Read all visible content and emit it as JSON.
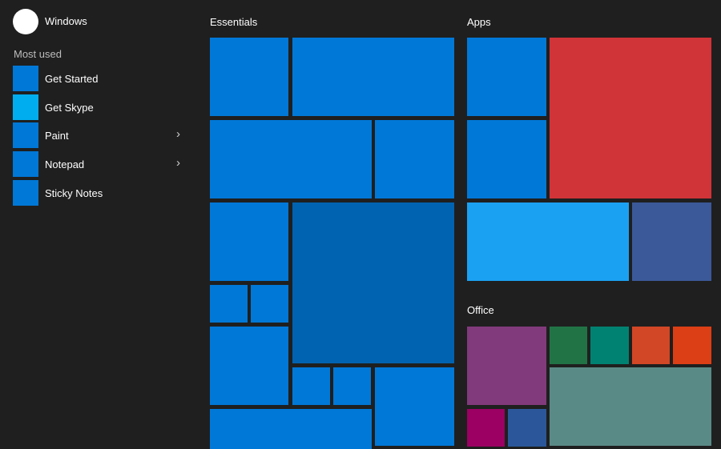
{
  "user": {
    "name": "Windows"
  },
  "most_used": {
    "label": "Most used",
    "items": [
      {
        "label": "Get Started",
        "color": "#0078d7",
        "has_submenu": false
      },
      {
        "label": "Get Skype",
        "color": "#00adef",
        "has_submenu": false
      },
      {
        "label": "Paint",
        "color": "#0078d7",
        "has_submenu": true
      },
      {
        "label": "Notepad",
        "color": "#0078d7",
        "has_submenu": true
      },
      {
        "label": "Sticky Notes",
        "color": "#0078d7",
        "has_submenu": false
      }
    ]
  },
  "chevron_glyph": "›",
  "groups": {
    "essentials": {
      "title": "Essentials",
      "tile_color": "#0078d7",
      "large_tile_color": "#0063b1"
    },
    "apps": {
      "title": "Apps",
      "colors": {
        "blue": "#0078d7",
        "red": "#d13438",
        "light_blue": "#1ba1f2",
        "indigo": "#3b5998"
      }
    },
    "office": {
      "title": "Office",
      "colors": {
        "purple": "#813a7c",
        "green": "#217346",
        "teal": "#008272",
        "orange": "#d24726",
        "red_orange": "#dc3e15",
        "sage": "#5a8a86",
        "magenta": "#9b0062",
        "navy": "#2b579a"
      }
    }
  }
}
